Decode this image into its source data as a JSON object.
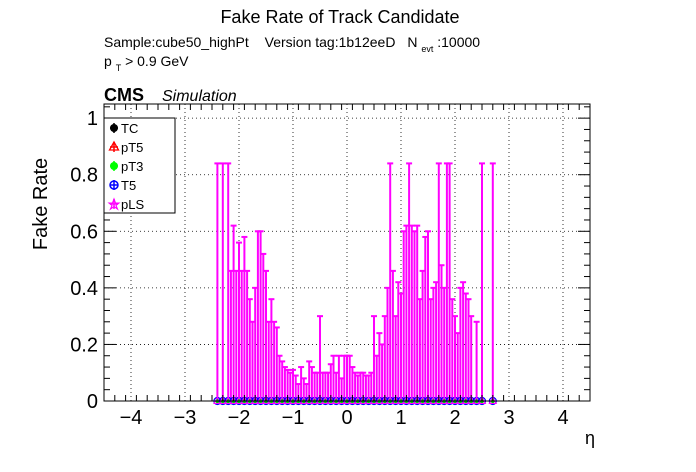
{
  "chart_data": {
    "type": "scatter",
    "title": "Fake Rate of Track Candidate",
    "info_line1": {
      "sample": "Sample:cube50_highPt",
      "version": "Version tag:1b12eeD",
      "nevt_prefix": "N",
      "nevt_sub": "evt",
      "nevt_value": ":10000"
    },
    "info_line2": {
      "p": "p",
      "p_sub": "T",
      "cut": " > 0.9 GeV"
    },
    "cms_label": "CMS",
    "simulation_label": "Simulation",
    "xlabel": "η",
    "ylabel": "Fake Rate",
    "xlim": [
      -4.5,
      4.5
    ],
    "ylim": [
      0,
      1.05
    ],
    "x_ticks": [
      "−4",
      "−3",
      "−2",
      "−1",
      "0",
      "1",
      "2",
      "3",
      "4"
    ],
    "x_tick_values": [
      -4,
      -3,
      -2,
      -1,
      0,
      1,
      2,
      3,
      4
    ],
    "y_ticks": [
      "0",
      "0.2",
      "0.4",
      "0.6",
      "0.8",
      "1"
    ],
    "y_tick_values": [
      0,
      0.2,
      0.4,
      0.6,
      0.8,
      1.0
    ],
    "grid": true,
    "legend_position": "top-left",
    "legend": [
      {
        "label": "TC",
        "color": "#000000",
        "marker": "circle-filled"
      },
      {
        "label": "pT5",
        "color": "#ff0000",
        "marker": "triangle-open"
      },
      {
        "label": "pT3",
        "color": "#00ff00",
        "marker": "circle-filled"
      },
      {
        "label": "T5",
        "color": "#0000ff",
        "marker": "circle-open"
      },
      {
        "label": "pLS",
        "color": "#ff00ff",
        "marker": "star"
      }
    ],
    "pls_series": {
      "name": "pLS",
      "color": "#ff00ff",
      "bin_centers": [
        -2.4,
        -2.3,
        -2.2,
        -2.15,
        -2.1,
        -2.05,
        -2.0,
        -1.95,
        -1.9,
        -1.85,
        -1.8,
        -1.75,
        -1.7,
        -1.65,
        -1.6,
        -1.55,
        -1.5,
        -1.45,
        -1.4,
        -1.35,
        -1.3,
        -1.25,
        -1.2,
        -1.15,
        -1.1,
        -1.05,
        -1.0,
        -0.95,
        -0.9,
        -0.85,
        -0.8,
        -0.75,
        -0.7,
        -0.65,
        -0.6,
        -0.55,
        -0.5,
        -0.45,
        -0.4,
        -0.35,
        -0.3,
        -0.25,
        -0.2,
        -0.15,
        -0.1,
        -0.05,
        0.0,
        0.05,
        0.1,
        0.15,
        0.2,
        0.25,
        0.3,
        0.35,
        0.4,
        0.45,
        0.5,
        0.55,
        0.6,
        0.65,
        0.7,
        0.75,
        0.8,
        0.85,
        0.9,
        0.95,
        1.0,
        1.05,
        1.1,
        1.15,
        1.2,
        1.25,
        1.3,
        1.35,
        1.4,
        1.45,
        1.5,
        1.55,
        1.6,
        1.65,
        1.7,
        1.75,
        1.8,
        1.85,
        1.9,
        1.95,
        2.0,
        2.05,
        2.1,
        2.15,
        2.2,
        2.25,
        2.3,
        2.4,
        2.5,
        2.7
      ],
      "error_up": [
        0.84,
        0.84,
        0.84,
        0.46,
        0.62,
        0.46,
        0.56,
        0.46,
        0.58,
        0.46,
        0.36,
        0.28,
        0.4,
        0.6,
        0.6,
        0.52,
        0.46,
        0.28,
        0.36,
        0.28,
        0.26,
        0.16,
        0.14,
        0.12,
        0.11,
        0.1,
        0.11,
        0.09,
        0.06,
        0.12,
        0.08,
        0.06,
        0.14,
        0.12,
        0.1,
        0.1,
        0.3,
        0.1,
        0.1,
        0.1,
        0.13,
        0.16,
        0.1,
        0.16,
        0.08,
        0.16,
        0.16,
        0.16,
        0.12,
        0.1,
        0.09,
        0.1,
        0.1,
        0.09,
        0.09,
        0.1,
        0.3,
        0.16,
        0.24,
        0.2,
        0.3,
        0.4,
        0.84,
        0.46,
        0.3,
        0.42,
        0.38,
        0.6,
        0.62,
        0.84,
        0.62,
        0.6,
        0.62,
        0.36,
        0.46,
        0.58,
        0.6,
        0.36,
        0.4,
        0.42,
        0.84,
        0.48,
        0.4,
        0.84,
        0.84,
        0.36,
        0.3,
        0.24,
        0.4,
        0.42,
        0.38,
        0.36,
        0.3,
        0.28,
        0.84,
        0.84
      ]
    },
    "zero_marker_positions": [
      -2.4,
      -2.3,
      -2.2,
      -2.1,
      -2.0,
      -1.9,
      -1.8,
      -1.7,
      -1.6,
      -1.5,
      -1.4,
      -1.3,
      -1.2,
      -1.1,
      -1.0,
      -0.9,
      -0.8,
      -0.7,
      -0.6,
      -0.5,
      -0.4,
      -0.3,
      -0.2,
      -0.1,
      0.0,
      0.1,
      0.2,
      0.3,
      0.4,
      0.5,
      0.6,
      0.7,
      0.8,
      0.9,
      1.0,
      1.1,
      1.2,
      1.3,
      1.4,
      1.5,
      1.6,
      1.7,
      1.8,
      1.9,
      2.0,
      2.1,
      2.2,
      2.3,
      2.4,
      2.5,
      2.7
    ]
  }
}
